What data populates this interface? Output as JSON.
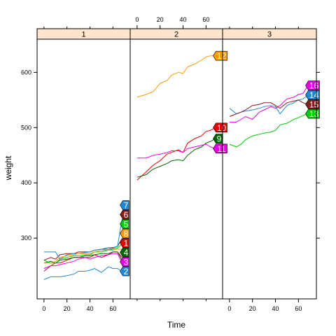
{
  "chart_data": {
    "type": "line",
    "xlabel": "Time",
    "ylabel": "weight",
    "xlim": [
      -6,
      75
    ],
    "ylim": [
      190,
      660
    ],
    "x_ticks": [
      0,
      20,
      40,
      60
    ],
    "y_ticks": [
      300,
      400,
      500,
      600
    ],
    "grid": false,
    "strip_color": "#ffe5cc",
    "panels": [
      {
        "strip_label": "1",
        "series": [
          {
            "label": "1",
            "color": "#e60000",
            "values": [
              [
                0,
                240
              ],
              [
                6,
                250
              ],
              [
                10,
                255
              ],
              [
                14,
                255
              ],
              [
                20,
                260
              ],
              [
                26,
                265
              ],
              [
                30,
                265
              ],
              [
                36,
                265
              ],
              [
                40,
                265
              ],
              [
                44,
                270
              ],
              [
                50,
                265
              ],
              [
                56,
                270
              ],
              [
                60,
                275
              ],
              [
                64,
                275
              ],
              [
                68,
                265
              ]
            ]
          },
          {
            "label": "2",
            "color": "#1f8ad6",
            "values": [
              [
                0,
                225
              ],
              [
                6,
                230
              ],
              [
                10,
                230
              ],
              [
                14,
                230
              ],
              [
                20,
                232
              ],
              [
                26,
                235
              ],
              [
                30,
                240
              ],
              [
                36,
                240
              ],
              [
                40,
                242
              ],
              [
                44,
                245
              ],
              [
                50,
                238
              ],
              [
                56,
                248
              ],
              [
                60,
                245
              ],
              [
                64,
                245
              ],
              [
                68,
                240
              ]
            ]
          },
          {
            "label": "3",
            "color": "#e600e6",
            "values": [
              [
                0,
                245
              ],
              [
                6,
                250
              ],
              [
                10,
                250
              ],
              [
                14,
                252
              ],
              [
                20,
                255
              ],
              [
                26,
                258
              ],
              [
                30,
                262
              ],
              [
                36,
                265
              ],
              [
                40,
                262
              ],
              [
                44,
                265
              ],
              [
                50,
                268
              ],
              [
                56,
                270
              ],
              [
                60,
                272
              ],
              [
                64,
                272
              ],
              [
                68,
                255
              ]
            ]
          },
          {
            "label": "4",
            "color": "#006400",
            "values": [
              [
                0,
                255
              ],
              [
                6,
                258
              ],
              [
                10,
                255
              ],
              [
                14,
                260
              ],
              [
                20,
                262
              ],
              [
                26,
                265
              ],
              [
                30,
                265
              ],
              [
                36,
                268
              ],
              [
                40,
                268
              ],
              [
                44,
                270
              ],
              [
                50,
                272
              ],
              [
                56,
                272
              ],
              [
                60,
                275
              ],
              [
                64,
                275
              ],
              [
                68,
                260
              ]
            ]
          },
          {
            "label": "5",
            "color": "#00cc00",
            "values": [
              [
                0,
                260
              ],
              [
                6,
                255
              ],
              [
                10,
                255
              ],
              [
                14,
                262
              ],
              [
                20,
                265
              ],
              [
                26,
                268
              ],
              [
                30,
                268
              ],
              [
                36,
                270
              ],
              [
                40,
                270
              ],
              [
                44,
                275
              ],
              [
                50,
                275
              ],
              [
                56,
                278
              ],
              [
                60,
                280
              ],
              [
                64,
                282
              ],
              [
                68,
                290
              ]
            ]
          },
          {
            "label": "6",
            "color": "#8b1a1a",
            "values": [
              [
                0,
                260
              ],
              [
                6,
                265
              ],
              [
                10,
                262
              ],
              [
                14,
                270
              ],
              [
                20,
                272
              ],
              [
                26,
                272
              ],
              [
                30,
                275
              ],
              [
                36,
                275
              ],
              [
                40,
                275
              ],
              [
                44,
                278
              ],
              [
                50,
                280
              ],
              [
                56,
                280
              ],
              [
                60,
                282
              ],
              [
                64,
                285
              ],
              [
                68,
                300
              ]
            ]
          },
          {
            "label": "7",
            "color": "#1f8ad6",
            "values": [
              [
                0,
                275
              ],
              [
                6,
                275
              ],
              [
                10,
                275
              ],
              [
                14,
                262
              ],
              [
                20,
                270
              ],
              [
                26,
                272
              ],
              [
                30,
                272
              ],
              [
                36,
                274
              ],
              [
                40,
                275
              ],
              [
                44,
                278
              ],
              [
                50,
                280
              ],
              [
                56,
                283
              ],
              [
                60,
                283
              ],
              [
                64,
                285
              ],
              [
                68,
                335
              ]
            ]
          },
          {
            "label": "8",
            "color": "#ff9900",
            "values": [
              [
                0,
                255
              ],
              [
                6,
                255
              ],
              [
                10,
                258
              ],
              [
                14,
                265
              ],
              [
                20,
                268
              ],
              [
                26,
                270
              ],
              [
                30,
                272
              ],
              [
                36,
                272
              ],
              [
                40,
                272
              ],
              [
                44,
                275
              ],
              [
                50,
                278
              ],
              [
                56,
                278
              ],
              [
                60,
                278
              ],
              [
                64,
                280
              ],
              [
                68,
                280
              ]
            ]
          }
        ]
      },
      {
        "strip_label": "2",
        "series": [
          {
            "label": "12",
            "color": "#ff9900",
            "values": [
              [
                0,
                555
              ],
              [
                8,
                560
              ],
              [
                14,
                565
              ],
              [
                20,
                580
              ],
              [
                26,
                585
              ],
              [
                30,
                595
              ],
              [
                36,
                600
              ],
              [
                40,
                598
              ],
              [
                44,
                610
              ],
              [
                50,
                615
              ],
              [
                56,
                622
              ],
              [
                60,
                628
              ],
              [
                64,
                630
              ],
              [
                68,
                630
              ]
            ]
          },
          {
            "label": "10",
            "color": "#e60000",
            "values": [
              [
                0,
                405
              ],
              [
                8,
                420
              ],
              [
                14,
                432
              ],
              [
                20,
                440
              ],
              [
                26,
                452
              ],
              [
                30,
                455
              ],
              [
                36,
                460
              ],
              [
                40,
                455
              ],
              [
                44,
                472
              ],
              [
                50,
                480
              ],
              [
                56,
                485
              ],
              [
                60,
                493
              ],
              [
                64,
                495
              ],
              [
                68,
                500
              ]
            ]
          },
          {
            "label": "9",
            "color": "#006400",
            "values": [
              [
                0,
                410
              ],
              [
                8,
                415
              ],
              [
                14,
                425
              ],
              [
                20,
                430
              ],
              [
                26,
                435
              ],
              [
                30,
                440
              ],
              [
                36,
                442
              ],
              [
                40,
                440
              ],
              [
                44,
                450
              ],
              [
                50,
                460
              ],
              [
                56,
                465
              ],
              [
                60,
                472
              ],
              [
                64,
                475
              ],
              [
                68,
                480
              ]
            ]
          },
          {
            "label": "11",
            "color": "#e600e6",
            "values": [
              [
                0,
                445
              ],
              [
                8,
                445
              ],
              [
                14,
                450
              ],
              [
                20,
                452
              ],
              [
                26,
                455
              ],
              [
                30,
                458
              ],
              [
                36,
                458
              ],
              [
                40,
                455
              ],
              [
                44,
                462
              ],
              [
                50,
                465
              ],
              [
                56,
                468
              ],
              [
                60,
                470
              ],
              [
                64,
                465
              ],
              [
                68,
                462
              ]
            ]
          }
        ]
      },
      {
        "strip_label": "3",
        "series": [
          {
            "label": "16",
            "color": "#e600e6",
            "values": [
              [
                0,
                510
              ],
              [
                6,
                510
              ],
              [
                10,
                515
              ],
              [
                14,
                520
              ],
              [
                20,
                515
              ],
              [
                26,
                528
              ],
              [
                30,
                532
              ],
              [
                36,
                538
              ],
              [
                40,
                535
              ],
              [
                44,
                540
              ],
              [
                50,
                552
              ],
              [
                56,
                555
              ],
              [
                60,
                560
              ],
              [
                64,
                562
              ],
              [
                68,
                575
              ]
            ]
          },
          {
            "label": "14",
            "color": "#1f8ad6",
            "values": [
              [
                0,
                535
              ],
              [
                6,
                525
              ],
              [
                10,
                528
              ],
              [
                14,
                530
              ],
              [
                20,
                532
              ],
              [
                26,
                535
              ],
              [
                30,
                538
              ],
              [
                36,
                540
              ],
              [
                40,
                538
              ],
              [
                44,
                525
              ],
              [
                50,
                540
              ],
              [
                56,
                545
              ],
              [
                60,
                550
              ],
              [
                64,
                552
              ],
              [
                68,
                558
              ]
            ]
          },
          {
            "label": "15",
            "color": "#8b1a1a",
            "values": [
              [
                0,
                520
              ],
              [
                6,
                525
              ],
              [
                10,
                528
              ],
              [
                14,
                532
              ],
              [
                20,
                540
              ],
              [
                26,
                542
              ],
              [
                30,
                545
              ],
              [
                36,
                545
              ],
              [
                40,
                540
              ],
              [
                44,
                535
              ],
              [
                50,
                545
              ],
              [
                56,
                548
              ],
              [
                60,
                550
              ],
              [
                64,
                545
              ],
              [
                68,
                542
              ]
            ]
          },
          {
            "label": "13",
            "color": "#00cc00",
            "values": [
              [
                0,
                470
              ],
              [
                6,
                465
              ],
              [
                10,
                470
              ],
              [
                14,
                478
              ],
              [
                20,
                485
              ],
              [
                26,
                488
              ],
              [
                30,
                490
              ],
              [
                36,
                492
              ],
              [
                40,
                495
              ],
              [
                44,
                505
              ],
              [
                50,
                508
              ],
              [
                56,
                515
              ],
              [
                60,
                518
              ],
              [
                64,
                522
              ],
              [
                68,
                525
              ]
            ]
          }
        ]
      }
    ]
  }
}
